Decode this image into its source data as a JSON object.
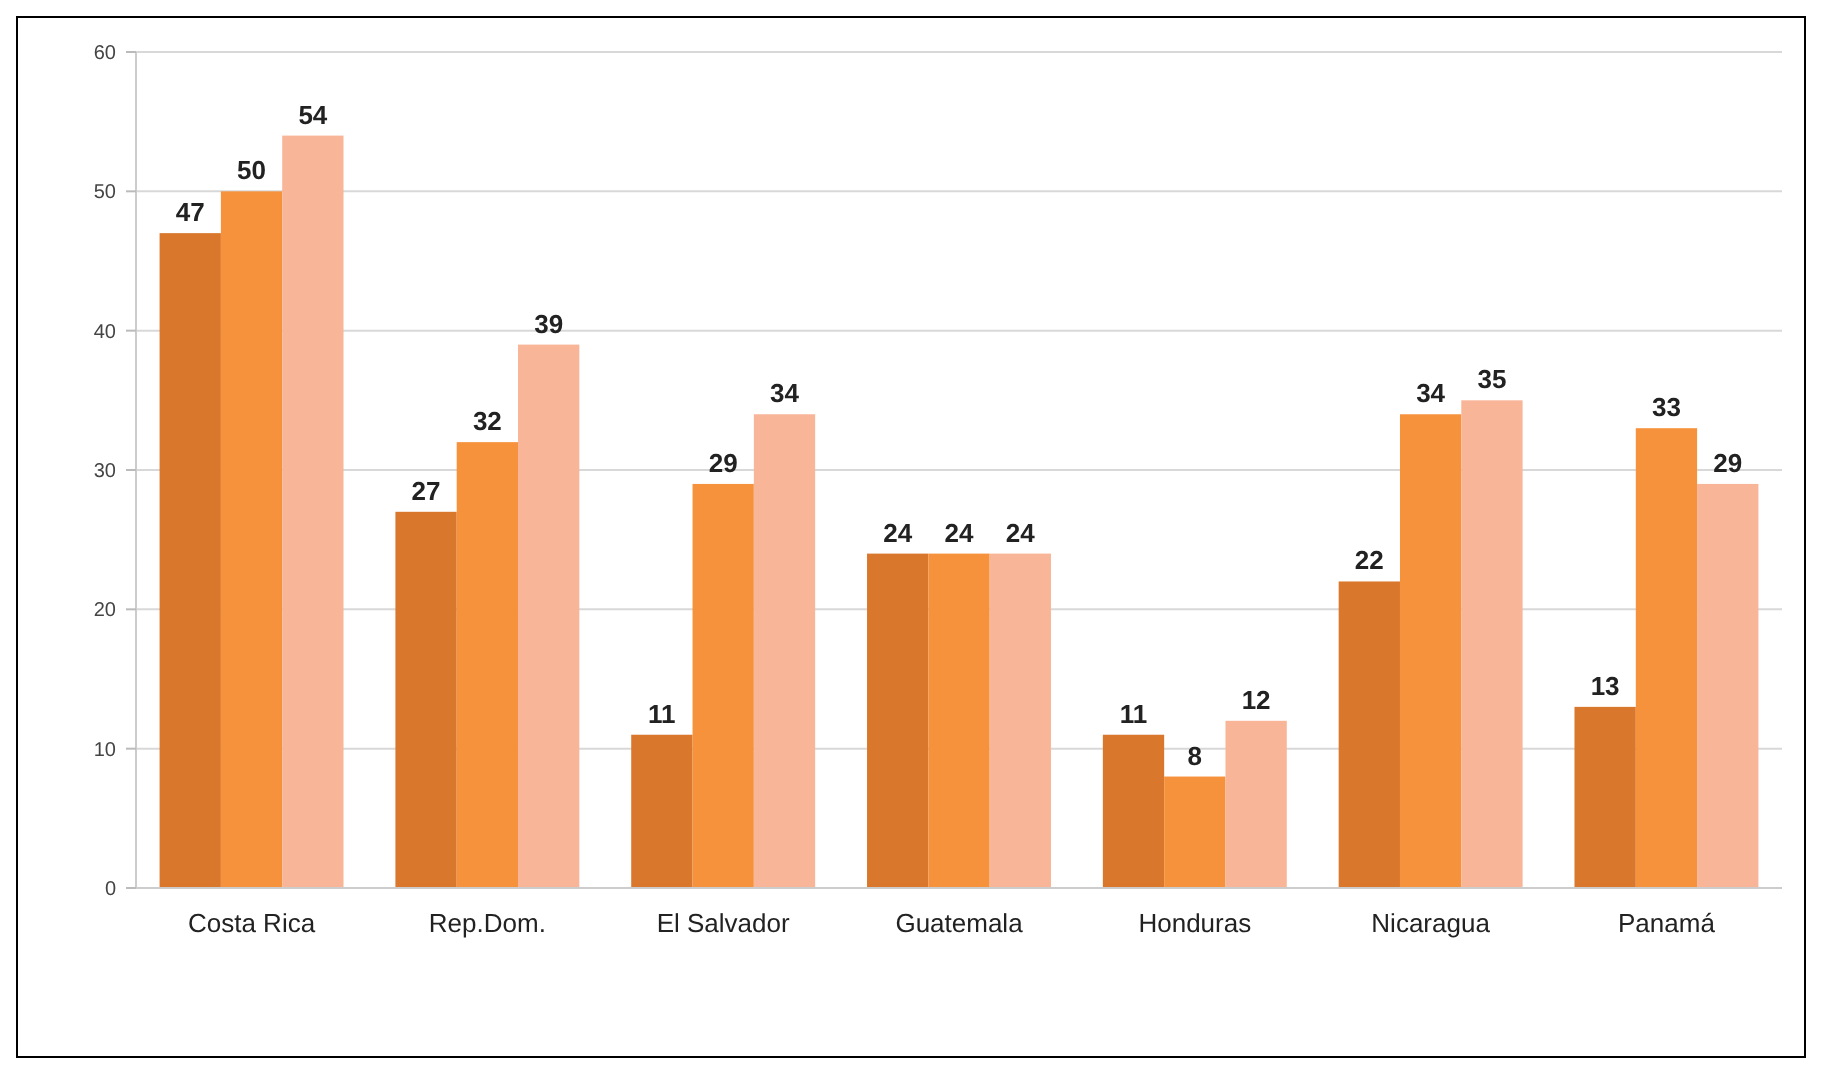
{
  "chart_data": {
    "type": "bar",
    "categories": [
      "Costa Rica",
      "Rep.Dom.",
      "El Salvador",
      "Guatemala",
      "Honduras",
      "Nicaragua",
      "Panamá"
    ],
    "series": [
      {
        "color": "#d9782d",
        "values": [
          47,
          27,
          11,
          24,
          11,
          22,
          13
        ]
      },
      {
        "color": "#f7923c",
        "values": [
          50,
          32,
          29,
          24,
          8,
          34,
          33
        ]
      },
      {
        "color": "#f9b597",
        "values": [
          54,
          39,
          34,
          24,
          12,
          35,
          29
        ]
      }
    ],
    "ylim": [
      0,
      60
    ],
    "yticks": [
      0,
      10,
      20,
      30,
      40,
      50,
      60
    ],
    "grid": "y",
    "data_labels": true
  }
}
